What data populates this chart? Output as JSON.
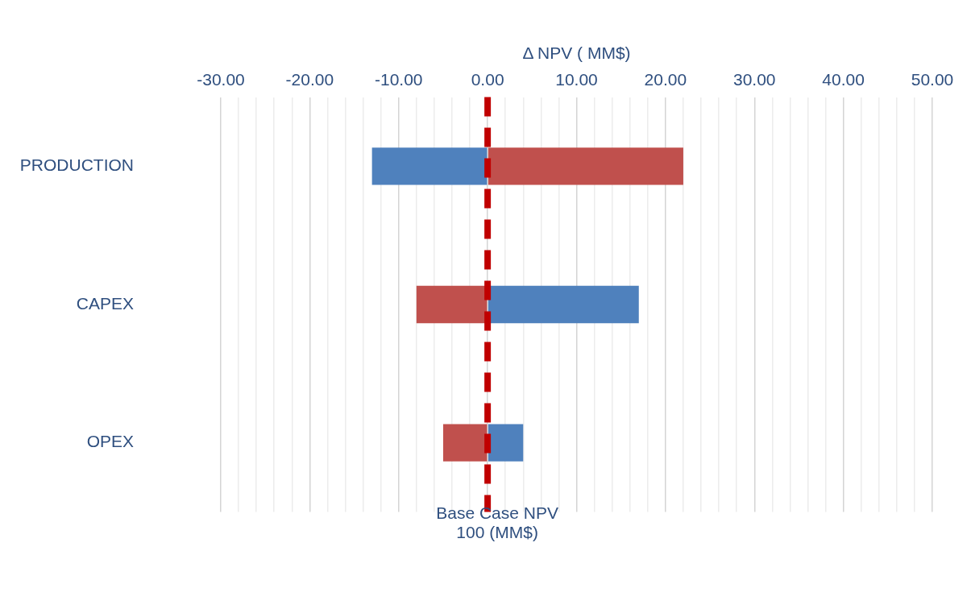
{
  "chart_data": {
    "type": "bar",
    "orientation": "horizontal",
    "stacked": true,
    "xlabel": "Δ NPV ( MM$)",
    "categories": [
      "PRODUCTION",
      "CAPEX",
      "OPEX"
    ],
    "series": [
      {
        "color": "#4f81bd",
        "values": [
          -13,
          17,
          4
        ]
      },
      {
        "color": "#c0504d",
        "values": [
          22,
          -8,
          -5
        ]
      }
    ],
    "xlim": [
      -30,
      50
    ],
    "xticks": [
      {
        "value": -30,
        "label": "-30.00"
      },
      {
        "value": -28,
        "label": null
      },
      {
        "value": -26,
        "label": null
      },
      {
        "value": -24,
        "label": null
      },
      {
        "value": -22,
        "label": null
      },
      {
        "value": -20,
        "label": "-20.00"
      },
      {
        "value": -18,
        "label": null
      },
      {
        "value": -16,
        "label": null
      },
      {
        "value": -14,
        "label": null
      },
      {
        "value": -12,
        "label": null
      },
      {
        "value": -10,
        "label": "-10.00"
      },
      {
        "value": -8,
        "label": null
      },
      {
        "value": -6,
        "label": null
      },
      {
        "value": -4,
        "label": null
      },
      {
        "value": -2,
        "label": null
      },
      {
        "value": 0,
        "label": "0.00"
      },
      {
        "value": 2,
        "label": null
      },
      {
        "value": 4,
        "label": null
      },
      {
        "value": 6,
        "label": null
      },
      {
        "value": 8,
        "label": null
      },
      {
        "value": 10,
        "label": "10.00"
      },
      {
        "value": 12,
        "label": null
      },
      {
        "value": 14,
        "label": null
      },
      {
        "value": 16,
        "label": null
      },
      {
        "value": 18,
        "label": null
      },
      {
        "value": 20,
        "label": "20.00"
      },
      {
        "value": 22,
        "label": null
      },
      {
        "value": 24,
        "label": null
      },
      {
        "value": 26,
        "label": null
      },
      {
        "value": 28,
        "label": null
      },
      {
        "value": 30,
        "label": "30.00"
      },
      {
        "value": 32,
        "label": null
      },
      {
        "value": 34,
        "label": null
      },
      {
        "value": 36,
        "label": null
      },
      {
        "value": 38,
        "label": null
      },
      {
        "value": 40,
        "label": "40.00"
      },
      {
        "value": 42,
        "label": null
      },
      {
        "value": 44,
        "label": null
      },
      {
        "value": 46,
        "label": null
      },
      {
        "value": 48,
        "label": null
      },
      {
        "value": 50,
        "label": "50.00"
      }
    ],
    "grid": "x",
    "legend": false,
    "ref_lines": [
      {
        "axis": "x",
        "value": 0,
        "label": "Base Case NPV\n100 (MM$)",
        "color": "#c00000",
        "line_style": "dashed"
      }
    ]
  }
}
